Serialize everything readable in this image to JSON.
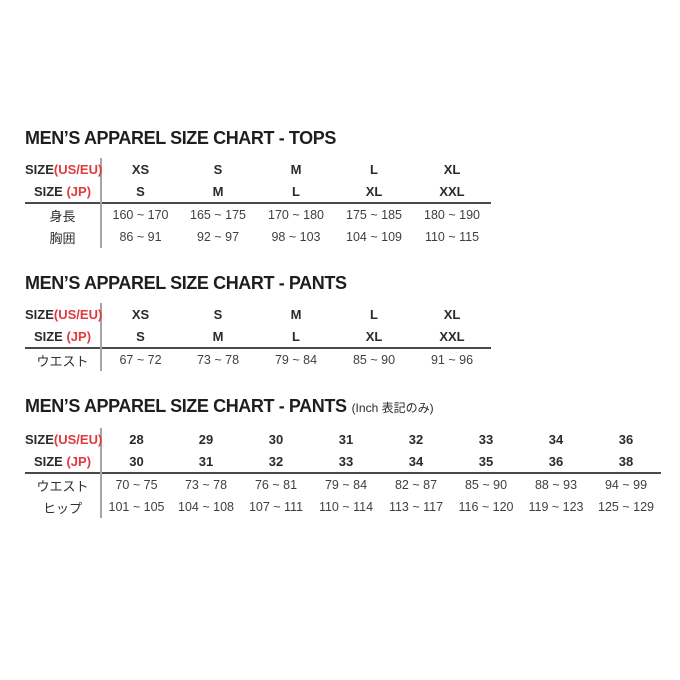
{
  "colors": {
    "accent_red": "#e03a3e",
    "title_black": "#1e1e1e",
    "header_text": "#2b2b2b",
    "data_text": "#3f3f3f",
    "divider_gray": "#a5a5a5",
    "rule_dark": "#4a4a4a",
    "background": "#ffffff"
  },
  "sections": [
    {
      "title": "MEN’S APPAREL SIZE CHART - TOPS",
      "suffix": "",
      "header_rows": [
        {
          "label": "SIZE",
          "label_paren": "(US/EU)",
          "values": [
            "XS",
            "S",
            "M",
            "L",
            "XL"
          ]
        },
        {
          "label": "SIZE ",
          "label_paren": "(JP)",
          "values": [
            "S",
            "M",
            "L",
            "XL",
            "XXL"
          ]
        }
      ],
      "data_rows": [
        {
          "label": "身長",
          "values": [
            "160 ~ 170",
            "165 ~ 175",
            "170 ~ 180",
            "175 ~ 185",
            "180 ~ 190"
          ]
        },
        {
          "label": "胸囲",
          "values": [
            "86 ~ 91",
            "92 ~ 97",
            "98 ~ 103",
            "104 ~ 109",
            "110 ~ 115"
          ]
        }
      ]
    },
    {
      "title": "MEN’S APPAREL SIZE CHART - PANTS",
      "suffix": "",
      "header_rows": [
        {
          "label": "SIZE",
          "label_paren": "(US/EU)",
          "values": [
            "XS",
            "S",
            "M",
            "L",
            "XL"
          ]
        },
        {
          "label": "SIZE ",
          "label_paren": "(JP)",
          "values": [
            "S",
            "M",
            "L",
            "XL",
            "XXL"
          ]
        }
      ],
      "data_rows": [
        {
          "label": "ウエスト",
          "values": [
            "67 ~ 72",
            "73 ~ 78",
            "79 ~ 84",
            "85 ~ 90",
            "91 ~ 96"
          ]
        }
      ]
    },
    {
      "title": "MEN’S APPAREL SIZE CHART - PANTS",
      "suffix": "(Inch 表記のみ)",
      "header_rows": [
        {
          "label": "SIZE",
          "label_paren": "(US/EU)",
          "values": [
            "28",
            "29",
            "30",
            "31",
            "32",
            "33",
            "34",
            "36"
          ]
        },
        {
          "label": "SIZE ",
          "label_paren": "(JP)",
          "values": [
            "30",
            "31",
            "32",
            "33",
            "34",
            "35",
            "36",
            "38"
          ]
        }
      ],
      "data_rows": [
        {
          "label": "ウエスト",
          "values": [
            "70 ~ 75",
            "73 ~ 78",
            "76 ~ 81",
            "79 ~ 84",
            "82 ~ 87",
            "85 ~ 90",
            "88 ~ 93",
            "94 ~ 99"
          ]
        },
        {
          "label": "ヒップ",
          "values": [
            "101 ~ 105",
            "104 ~ 108",
            "107 ~ 111",
            "110 ~ 114",
            "113 ~ 117",
            "116 ~ 120",
            "119 ~ 123",
            "125 ~ 129"
          ]
        }
      ]
    }
  ]
}
